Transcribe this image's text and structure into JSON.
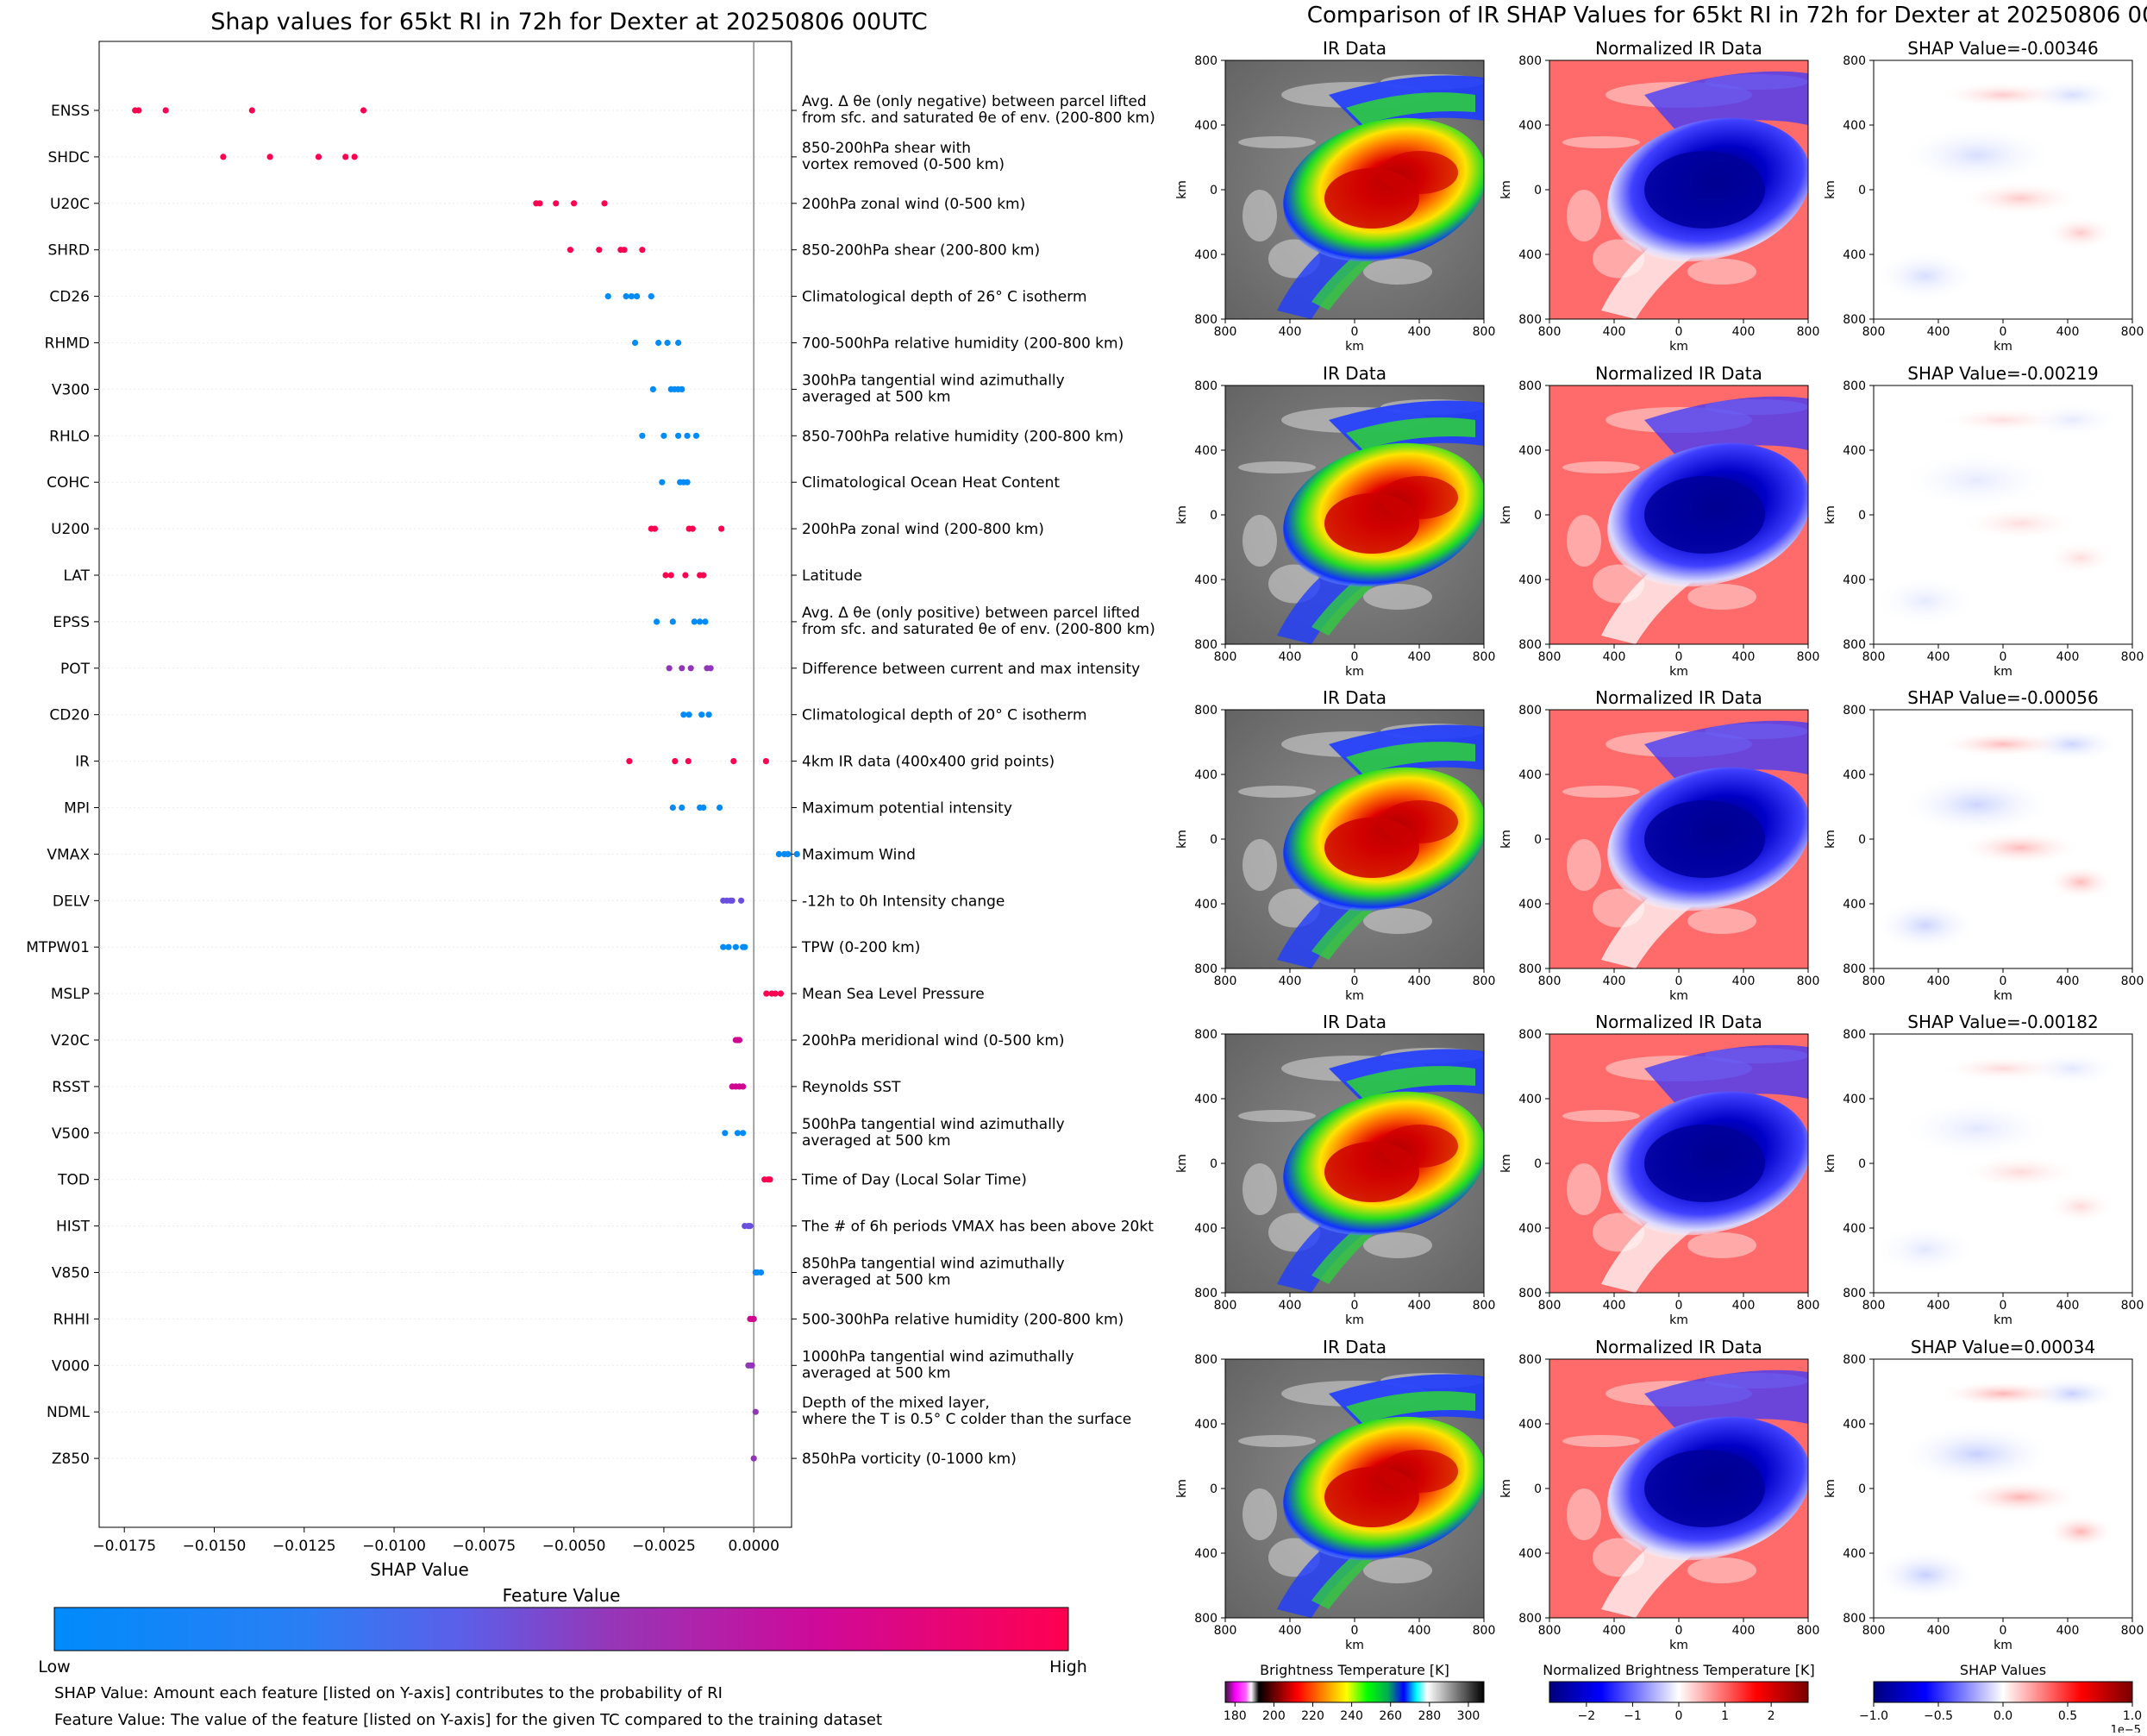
{
  "left_panel": {
    "title": "Shap values for 65kt RI in 72h for Dexter at 20250806 00UTC",
    "colorbar": {
      "title": "Feature Value",
      "low_label": "Low",
      "high_label": "High",
      "colors": [
        "#008bfb",
        "#5b5fe9",
        "#9636b7",
        "#ce0a9a",
        "#ff0051"
      ]
    },
    "notes": [
      "SHAP Value: Amount each feature [listed on Y-axis] contributes to the probability of RI",
      "Feature Value: The value of the feature [listed on Y-axis] for the given TC compared to the training dataset"
    ]
  },
  "right_panel": {
    "title": "Comparison of IR SHAP Values for 65kt RI in 72h for Dexter at 20250806 00UTC",
    "column_titles": [
      "IR Data",
      "Normalized IR Data"
    ],
    "shap_titles": [
      "SHAP Value=-0.00346",
      "SHAP Value=-0.00219",
      "SHAP Value=-0.00056",
      "SHAP Value=-0.00182",
      "SHAP Value=0.00034"
    ],
    "axis_unit": "km",
    "axis_ticks": [
      "800",
      "400",
      "0",
      "400",
      "800"
    ],
    "colorbars": [
      {
        "title": "Brightness Temperature [K]",
        "ticks": [
          "180",
          "200",
          "220",
          "240",
          "260",
          "280",
          "300"
        ]
      },
      {
        "title": "Normalized Brightness Temperature [K]",
        "ticks": [
          "−2",
          "−1",
          "0",
          "1",
          "2"
        ]
      },
      {
        "title": "SHAP Values",
        "ticks": [
          "−1.0",
          "−0.5",
          "0.0",
          "0.5",
          "1.0"
        ],
        "offset_text": "1e−5"
      }
    ]
  },
  "chart_data": [
    {
      "type": "scatter",
      "title": "Shap values for 65kt RI in 72h for Dexter at 20250806 00UTC",
      "xlabel": "SHAP Value",
      "xlim": [
        -0.0182,
        0.00105
      ],
      "xticks": [
        -0.0175,
        -0.015,
        -0.0125,
        -0.01,
        -0.0075,
        -0.005,
        -0.0025,
        0.0
      ],
      "xtick_labels": [
        "−0.0175",
        "−0.0150",
        "−0.0125",
        "−0.0100",
        "−0.0075",
        "−0.0050",
        "−0.0025",
        "0.0000"
      ],
      "zero_line": 0.0,
      "feature_colors": {
        "low": "#008bfb",
        "mid": "#9236b8",
        "high": "#ff0051",
        "mid_low": "#6a4ee0",
        "mid_high": "#d0078f"
      },
      "features": [
        {
          "name": "ENSS",
          "desc": "Avg. Δ θe (only negative) between parcel lifted|from sfc. and saturated θe of env. (200-800 km)",
          "color": "#ff0051",
          "values": [
            -0.0172,
            -0.0171,
            -0.01635,
            -0.01395,
            -0.01085
          ]
        },
        {
          "name": "SHDC",
          "desc": "850-200hPa shear with|vortex removed (0-500 km)",
          "color": "#ff0051",
          "values": [
            -0.01475,
            -0.01345,
            -0.0121,
            -0.01135,
            -0.0111
          ]
        },
        {
          "name": "U20C",
          "desc": "200hPa zonal wind (0-500 km)",
          "color": "#ff0051",
          "values": [
            -0.00605,
            -0.00595,
            -0.0055,
            -0.005,
            -0.00415
          ]
        },
        {
          "name": "SHRD",
          "desc": "850-200hPa shear (200-800 km)",
          "color": "#ff0051",
          "values": [
            -0.0051,
            -0.0043,
            -0.0037,
            -0.0036,
            -0.0031
          ]
        },
        {
          "name": "CD26",
          "desc": "Climatological depth of 26° C isotherm",
          "color": "#008bfb",
          "values": [
            -0.00405,
            -0.00355,
            -0.0034,
            -0.00325,
            -0.00285
          ]
        },
        {
          "name": "RHMD",
          "desc": "700-500hPa relative humidity (200-800 km)",
          "color": "#008bfb",
          "values": [
            -0.0033,
            -0.00265,
            -0.0024,
            -0.0021
          ]
        },
        {
          "name": "V300",
          "desc": "300hPa tangential wind azimuthally|averaged at 500 km",
          "color": "#008bfb",
          "values": [
            -0.0028,
            -0.0023,
            -0.0022,
            -0.0021,
            -0.002
          ]
        },
        {
          "name": "RHLO",
          "desc": "850-700hPa relative humidity (200-800 km)",
          "color": "#008bfb",
          "values": [
            -0.0031,
            -0.0025,
            -0.0021,
            -0.00185,
            -0.0016
          ]
        },
        {
          "name": "COHC",
          "desc": "Climatological Ocean Heat Content",
          "color": "#008bfb",
          "values": [
            -0.00255,
            -0.00205,
            -0.00195,
            -0.00185
          ]
        },
        {
          "name": "U200",
          "desc": "200hPa zonal wind (200-800 km)",
          "color": "#ff0051",
          "values": [
            -0.00285,
            -0.00275,
            -0.0018,
            -0.0017,
            -0.0009
          ]
        },
        {
          "name": "LAT",
          "desc": "Latitude",
          "color": "#ff0051",
          "values": [
            -0.00245,
            -0.0023,
            -0.0019,
            -0.0015,
            -0.0014
          ]
        },
        {
          "name": "EPSS",
          "desc": "Avg. Δ θe (only positive) between parcel lifted|from sfc. and saturated θe of env. (200-800 km)",
          "color": "#008bfb",
          "values": [
            -0.0027,
            -0.00225,
            -0.00165,
            -0.0015,
            -0.00135
          ]
        },
        {
          "name": "POT",
          "desc": "Difference between current and max intensity",
          "color": "#9236b8",
          "values": [
            -0.00235,
            -0.002,
            -0.00175,
            -0.0013,
            -0.0012
          ]
        },
        {
          "name": "CD20",
          "desc": "Climatological depth of 20° C isotherm",
          "color": "#008bfb",
          "values": [
            -0.00195,
            -0.0018,
            -0.00145,
            -0.00125
          ]
        },
        {
          "name": "IR",
          "desc": "4km IR data (400x400 grid points)",
          "color": "#ff0051",
          "values": [
            -0.00346,
            -0.00219,
            -0.00182,
            -0.00056,
            0.00034
          ]
        },
        {
          "name": "MPI",
          "desc": "Maximum potential intensity",
          "color": "#008bfb",
          "values": [
            -0.00225,
            -0.002,
            -0.0015,
            -0.0014,
            -0.00095
          ]
        },
        {
          "name": "VMAX",
          "desc": "Maximum Wind",
          "color": "#008bfb",
          "values": [
            0.0007,
            0.00085,
            0.00095,
            0.0012
          ]
        },
        {
          "name": "DELV",
          "desc": "-12h to 0h Intensity change",
          "color": "#6a4ee0",
          "values": [
            -0.00085,
            -0.00075,
            -0.00065,
            -0.0006,
            -0.00035
          ]
        },
        {
          "name": "MTPW01",
          "desc": "TPW (0-200 km)",
          "color": "#008bfb",
          "values": [
            -0.00085,
            -0.0007,
            -0.0005,
            -0.0003,
            -0.00025
          ]
        },
        {
          "name": "MSLP",
          "desc": "Mean Sea Level Pressure",
          "color": "#ff0051",
          "values": [
            0.00035,
            0.0005,
            0.0006,
            0.00075
          ]
        },
        {
          "name": "V20C",
          "desc": "200hPa meridional wind (0-500 km)",
          "color": "#d0078f",
          "values": [
            -0.0005,
            -0.00045,
            -0.0004
          ]
        },
        {
          "name": "RSST",
          "desc": "Reynolds SST",
          "color": "#d0078f",
          "values": [
            -0.0006,
            -0.0005,
            -0.0004,
            -0.0003
          ]
        },
        {
          "name": "V500",
          "desc": "500hPa tangential wind azimuthally|averaged at 500 km",
          "color": "#008bfb",
          "values": [
            -0.0008,
            -0.00045,
            -0.0003
          ]
        },
        {
          "name": "TOD",
          "desc": "Time of Day (Local Solar Time)",
          "color": "#ff0051",
          "values": [
            0.0003,
            0.0004,
            0.00045
          ]
        },
        {
          "name": "HIST",
          "desc": "The # of 6h periods VMAX has been above 20kt",
          "color": "#6a4ee0",
          "values": [
            -0.00025,
            -0.00015,
            -0.0001
          ]
        },
        {
          "name": "V850",
          "desc": "850hPa tangential wind azimuthally|averaged at 500 km",
          "color": "#008bfb",
          "values": [
            5e-05,
            0.0001,
            0.0002
          ]
        },
        {
          "name": "RHHI",
          "desc": "500-300hPa relative humidity (200-800 km)",
          "color": "#d0078f",
          "values": [
            -0.0001,
            -5e-05,
            0.0
          ]
        },
        {
          "name": "V000",
          "desc": "1000hPa tangential wind azimuthally|averaged at 500 km",
          "color": "#9236b8",
          "values": [
            -0.00015,
            -0.0001,
            -5e-05
          ]
        },
        {
          "name": "NDML",
          "desc": "Depth of the mixed layer,|where the T is 0.5° C colder than the surface",
          "color": "#9236b8",
          "values": [
            5e-05
          ]
        },
        {
          "name": "Z850",
          "desc": "850hPa vorticity (0-1000 km)",
          "color": "#9236b8",
          "values": [
            0.0
          ]
        }
      ]
    }
  ]
}
